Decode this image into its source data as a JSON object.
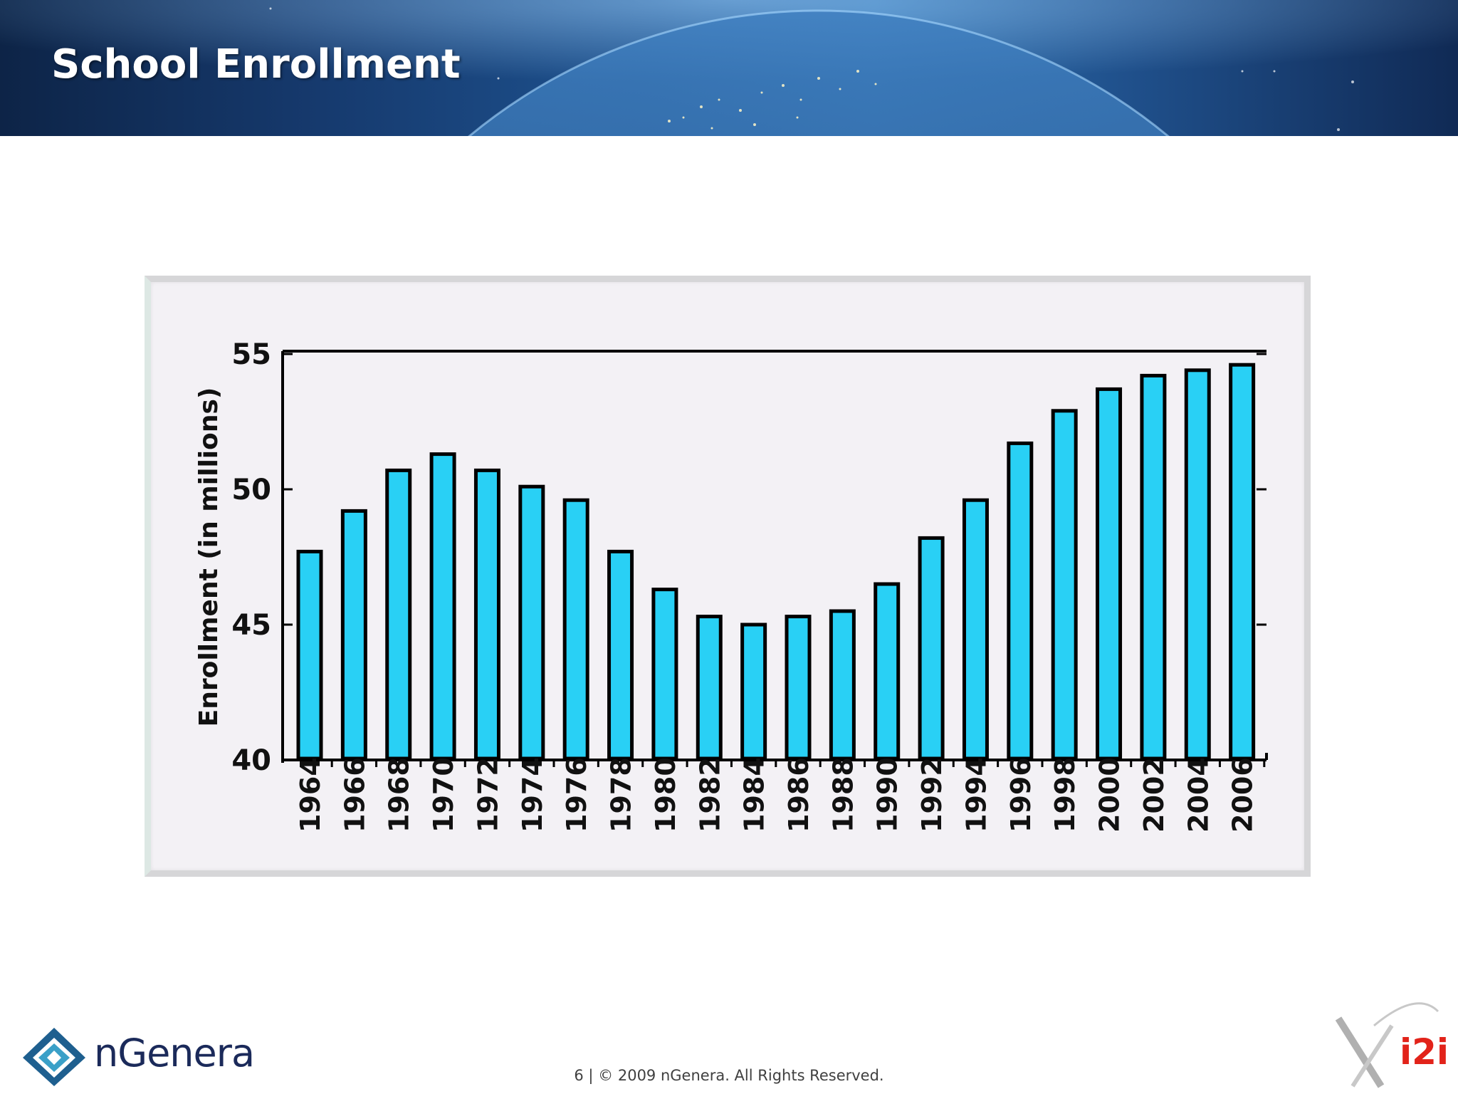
{
  "slide": {
    "title": "School Enrollment",
    "footer": "6 | © 2009 nGenera. All Rights Reserved.",
    "logo_left_text": "nGenera",
    "logo_right_text": "i2i"
  },
  "colors": {
    "bar_fill": "#29d0f5",
    "bar_stroke": "#000000",
    "title": "#ffffff",
    "logo_left": "#1b2a5a",
    "logo_right": "#e2231a"
  },
  "chart_data": {
    "type": "bar",
    "title": "",
    "xlabel": "",
    "ylabel": "Enrollment (in millions)",
    "ylim": [
      40,
      55
    ],
    "yticks": [
      40,
      45,
      50,
      55
    ],
    "categories": [
      "1964",
      "1966",
      "1968",
      "1970",
      "1972",
      "1974",
      "1976",
      "1978",
      "1980",
      "1982",
      "1984",
      "1986",
      "1988",
      "1990",
      "1992",
      "1994",
      "1996",
      "1998",
      "2000",
      "2002",
      "2004",
      "2006"
    ],
    "values": [
      47.7,
      49.2,
      50.7,
      51.3,
      50.7,
      50.1,
      49.6,
      47.7,
      46.3,
      45.3,
      45.0,
      45.3,
      45.5,
      46.5,
      48.2,
      49.6,
      51.7,
      52.9,
      53.7,
      54.2,
      54.4,
      54.6
    ],
    "grid": false,
    "legend": "none"
  }
}
